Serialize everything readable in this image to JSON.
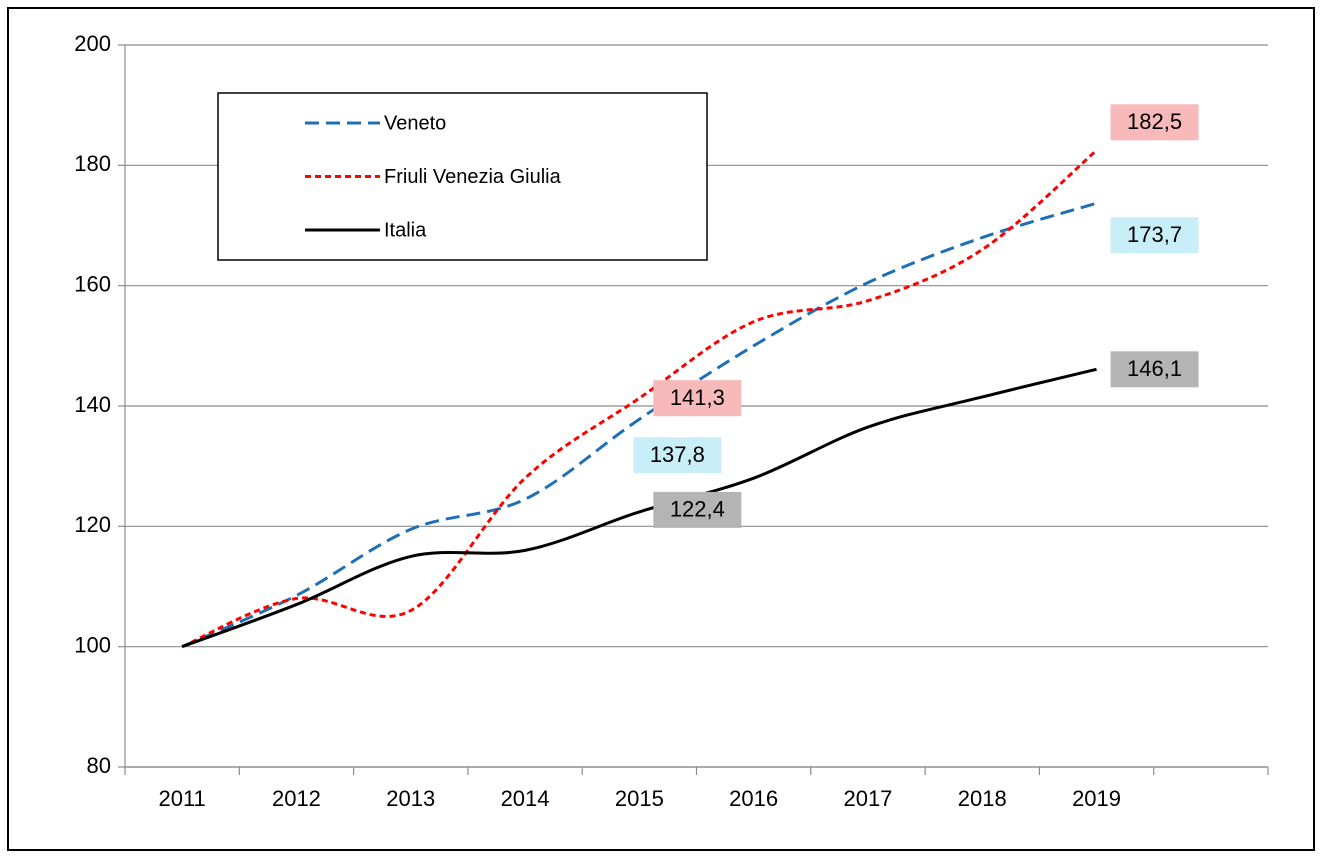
{
  "chart_data": {
    "type": "line",
    "categories": [
      "2011",
      "2012",
      "2013",
      "2014",
      "2015",
      "2016",
      "2017",
      "2018",
      "2019",
      null
    ],
    "series": [
      {
        "name": "Veneto",
        "color": "#1f6fb4",
        "dash": "14,7",
        "values": [
          100,
          108.5,
          119.5,
          124.5,
          137.8,
          150,
          160.5,
          168,
          173.7,
          null
        ],
        "value_labels": [
          null,
          null,
          null,
          null,
          "137,8",
          null,
          null,
          null,
          "173,7",
          null
        ],
        "label_color": "#c8eef8"
      },
      {
        "name": "Friuli Venezia Giulia",
        "color": "#ff0000",
        "dash": "6,4",
        "values": [
          100,
          108,
          106,
          128,
          141.3,
          154,
          157.5,
          166,
          182.5,
          null
        ],
        "value_labels": [
          null,
          null,
          null,
          null,
          "141,3",
          null,
          null,
          null,
          "182,5",
          null
        ],
        "label_color": "#f7b9b9"
      },
      {
        "name": "Italia",
        "color": "#000000",
        "dash": "none",
        "values": [
          100,
          107,
          115,
          116,
          122.4,
          128,
          136.5,
          141.5,
          146.1,
          null
        ],
        "value_labels": [
          null,
          null,
          null,
          null,
          "122,4",
          null,
          null,
          null,
          "146,1",
          null
        ],
        "label_color": "#b4b4b4"
      }
    ],
    "ylim": [
      80,
      200
    ],
    "yticks": [
      80,
      100,
      120,
      140,
      160,
      180,
      200
    ],
    "grid": true,
    "legend": "upper left"
  }
}
